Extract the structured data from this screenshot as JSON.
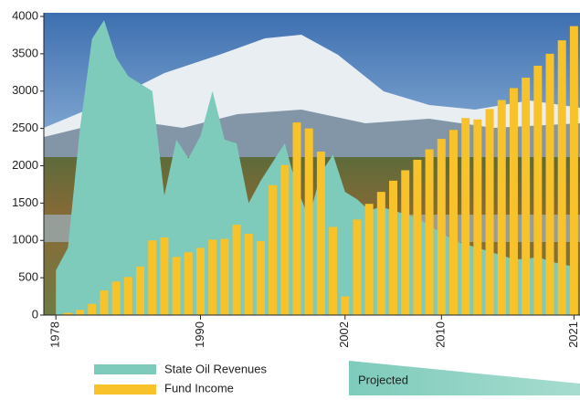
{
  "chart_data": {
    "type": "bar",
    "x": [
      1978,
      1979,
      1980,
      1981,
      1982,
      1983,
      1984,
      1985,
      1986,
      1987,
      1988,
      1989,
      1990,
      1991,
      1992,
      1993,
      1994,
      1995,
      1996,
      1997,
      1998,
      1999,
      2000,
      2001,
      2002,
      2003,
      2004,
      2005,
      2006,
      2007,
      2008,
      2009,
      2010,
      2011,
      2012,
      2013,
      2014,
      2015,
      2016,
      2017,
      2018,
      2019,
      2020,
      2021
    ],
    "series": [
      {
        "name": "State Oil Revenues",
        "type": "area",
        "color": "#7ecbbb",
        "values": [
          600,
          900,
          2500,
          3700,
          3950,
          3450,
          3200,
          3100,
          3000,
          1600,
          2350,
          2100,
          2400,
          3000,
          2350,
          2300,
          1500,
          1800,
          2050,
          2300,
          1700,
          1300,
          1900,
          2150,
          1650,
          1550,
          1400,
          1450,
          1400,
          1350,
          1300,
          1200,
          1100,
          1000,
          950,
          900,
          850,
          800,
          750,
          750,
          780,
          720,
          680,
          650
        ]
      },
      {
        "name": "Fund Income",
        "type": "bar",
        "color": "#f7c22a",
        "values": [
          0,
          30,
          70,
          150,
          330,
          450,
          510,
          650,
          1000,
          1040,
          780,
          840,
          900,
          1010,
          1020,
          1210,
          1090,
          990,
          1740,
          2010,
          2580,
          2500,
          2190,
          1180,
          250,
          1280,
          1490,
          1650,
          1800,
          1940,
          2080,
          2220,
          2360,
          2480,
          2640,
          2620,
          2760,
          2880,
          3040,
          3180,
          3340,
          3500,
          3680,
          3870
        ]
      }
    ],
    "xlim": [
      1977,
      2021.5
    ],
    "xticks": [
      1978,
      1990,
      2002,
      2010,
      2021
    ],
    "ylim": [
      0,
      4000
    ],
    "yticks": [
      0,
      500,
      1000,
      1500,
      2000,
      2500,
      3000,
      3500,
      4000
    ],
    "annotations": [
      "Projected"
    ]
  }
}
